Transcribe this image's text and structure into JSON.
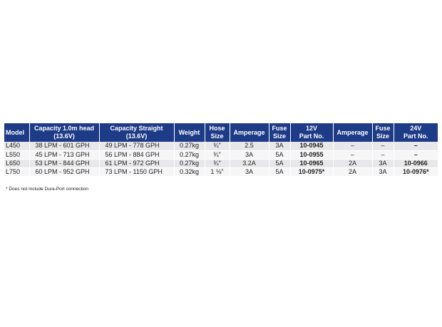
{
  "headers": {
    "model": "Model",
    "capacity_head": [
      "Capacity 1.0m head",
      "(13.6V)"
    ],
    "capacity_straight": [
      "Capacity Straight",
      "(13.6V)"
    ],
    "weight": "Weight",
    "hose_size": [
      "Hose",
      "Size"
    ],
    "amperage_12": "Amperage",
    "fuse_12": [
      "Fuse",
      "Size"
    ],
    "part_12": [
      "12V",
      "Part No."
    ],
    "amperage_24": "Amperage",
    "fuse_24": [
      "Fuse",
      "Size"
    ],
    "part_24": [
      "24V",
      "Part No."
    ]
  },
  "rows": [
    {
      "model": "L450",
      "capacity_head": "38 LPM - 601 GPH",
      "capacity_straight": "49 LPM - 778 GPH",
      "weight": "0.27kg",
      "hose_size": "¾\"",
      "amperage_12": "2.5",
      "fuse_12": "3A",
      "part_12": "10-0945",
      "amperage_24": "–",
      "fuse_24": "–",
      "part_24": "–"
    },
    {
      "model": "L550",
      "capacity_head": "45 LPM - 713 GPH",
      "capacity_straight": "56 LPM - 884 GPH",
      "weight": "0.27kg",
      "hose_size": "¾\"",
      "amperage_12": "3A",
      "fuse_12": "5A",
      "part_12": "10-0955",
      "amperage_24": "–",
      "fuse_24": "–",
      "part_24": "–"
    },
    {
      "model": "L650",
      "capacity_head": "53 LPM - 844 GPH",
      "capacity_straight": "61 LPM - 972 GPH",
      "weight": "0.27kg",
      "hose_size": "¾\"",
      "amperage_12": "3.2A",
      "fuse_12": "5A",
      "part_12": "10-0965",
      "amperage_24": "2A",
      "fuse_24": "3A",
      "part_24": "10-0966"
    },
    {
      "model": "L750",
      "capacity_head": "60 LPM - 952 GPH",
      "capacity_straight": "73 LPM - 1150 GPH",
      "weight": "0.32kg",
      "hose_size": "1 ⅛\"",
      "amperage_12": "3A",
      "fuse_12": "5A",
      "part_12": "10-0975*",
      "amperage_24": "2A",
      "fuse_24": "3A",
      "part_24": "10-0976*"
    }
  ],
  "footnote": "* Does not include Dura-Port connection",
  "colors": {
    "header_bg": "#1d3b87",
    "header_text": "#ffffff",
    "row_odd": "#e8e8ea",
    "row_even": "#f6f6f7"
  }
}
